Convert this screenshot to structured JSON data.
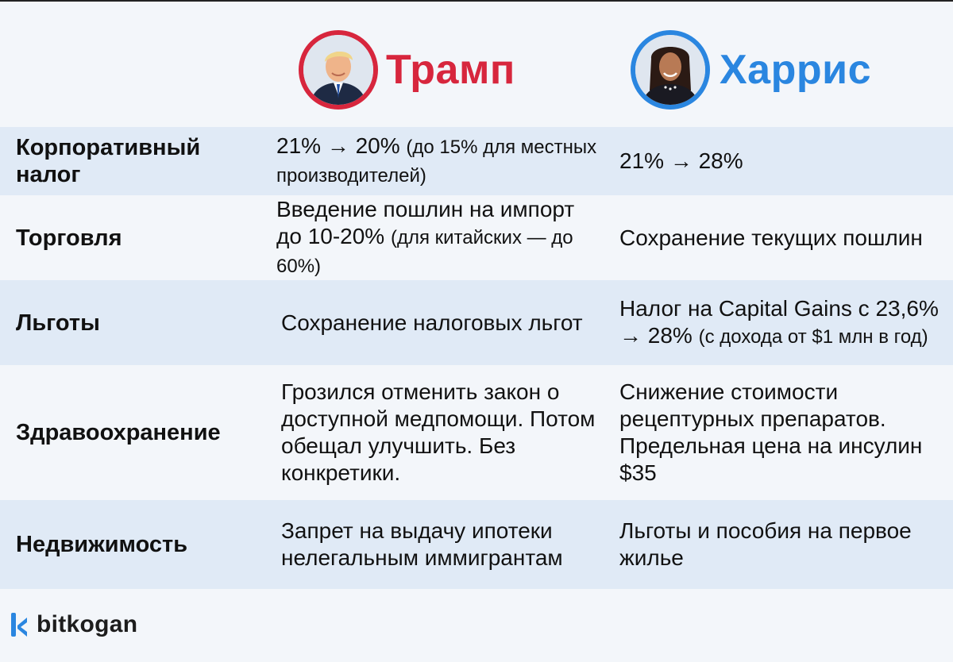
{
  "header": {
    "trump_name": "Трамп",
    "harris_name": "Харрис"
  },
  "rows": [
    {
      "label": "Корпоративный налог",
      "trump_main": "21% → 20%",
      "trump_small": "(до 15% для местных производителей)",
      "harris_main": "21% → 28%",
      "harris_small": ""
    },
    {
      "label": "Торговля",
      "trump_main": "Введение пошлин на импорт до 10-20%",
      "trump_small": "(для китайских — до 60%)",
      "harris_main": "Сохранение текущих пошлин",
      "harris_small": ""
    },
    {
      "label": "Льготы",
      "trump_main": "Сохранение налоговых льгот",
      "trump_small": "",
      "harris_main": "Налог на Capital Gains с 23,6% → 28%",
      "harris_small": "(с дохода от $1 млн в год)"
    },
    {
      "label": "Здравоохранение",
      "trump_main": "Грозился отменить закон о доступной медпомощи. Потом обещал улучшить. Без конкретики.",
      "trump_small": "",
      "harris_main": "Снижение стоимости рецептурных препаратов. Предельная цена на инсулин $35",
      "harris_small": ""
    },
    {
      "label": "Недвижимость",
      "trump_main": "Запрет на выдачу ипотеки нелегальным иммигрантам",
      "trump_small": "",
      "harris_main": "Льготы и пособия на первое жилье",
      "harris_small": ""
    }
  ],
  "logo": {
    "text": "bitkogan"
  },
  "colors": {
    "trump": "#d7263d",
    "harris": "#2a86e0",
    "row_shade": "#e0eaf6",
    "background": "#f3f6fa"
  },
  "icons": {
    "trump_avatar": "portrait-avatar",
    "harris_avatar": "portrait-avatar",
    "logo": "bitkogan-logo-icon"
  }
}
